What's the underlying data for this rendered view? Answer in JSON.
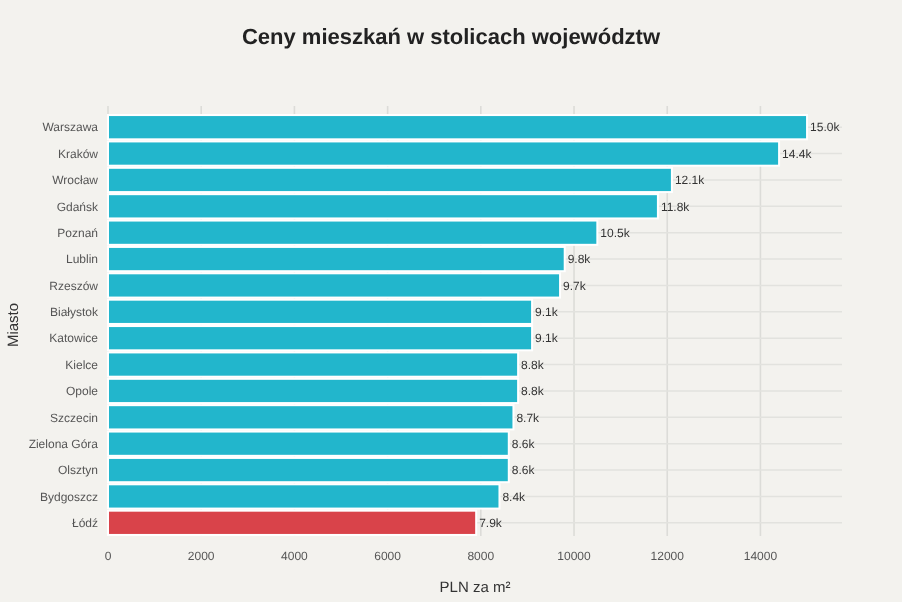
{
  "chart_data": {
    "type": "bar",
    "orientation": "horizontal",
    "title": "Ceny mieszkań w stolicach województw",
    "xlabel": "PLN za m²",
    "ylabel": "Miasto",
    "categories": [
      "Warszawa",
      "Kraków",
      "Wrocław",
      "Gdańsk",
      "Poznań",
      "Lublin",
      "Rzeszów",
      "Białystok",
      "Katowice",
      "Kielce",
      "Opole",
      "Szczecin",
      "Zielona Góra",
      "Olsztyn",
      "Bydgoszcz",
      "Łódź"
    ],
    "values": [
      15000,
      14400,
      12100,
      11800,
      10500,
      9800,
      9700,
      9100,
      9100,
      8800,
      8800,
      8700,
      8600,
      8600,
      8400,
      7900
    ],
    "value_labels": [
      "15.0k",
      "14.4k",
      "12.1k",
      "11.8k",
      "10.5k",
      "9.8k",
      "9.7k",
      "9.1k",
      "9.1k",
      "8.8k",
      "8.8k",
      "8.7k",
      "8.6k",
      "8.6k",
      "8.4k",
      "7.9k"
    ],
    "colors": [
      "#22b6cc",
      "#22b6cc",
      "#22b6cc",
      "#22b6cc",
      "#22b6cc",
      "#22b6cc",
      "#22b6cc",
      "#22b6cc",
      "#22b6cc",
      "#22b6cc",
      "#22b6cc",
      "#22b6cc",
      "#22b6cc",
      "#22b6cc",
      "#22b6cc",
      "#d9434a"
    ],
    "xlim": [
      0,
      15750
    ],
    "xticks": [
      0,
      2000,
      4000,
      6000,
      8000,
      10000,
      12000,
      14000
    ],
    "grid": true
  }
}
